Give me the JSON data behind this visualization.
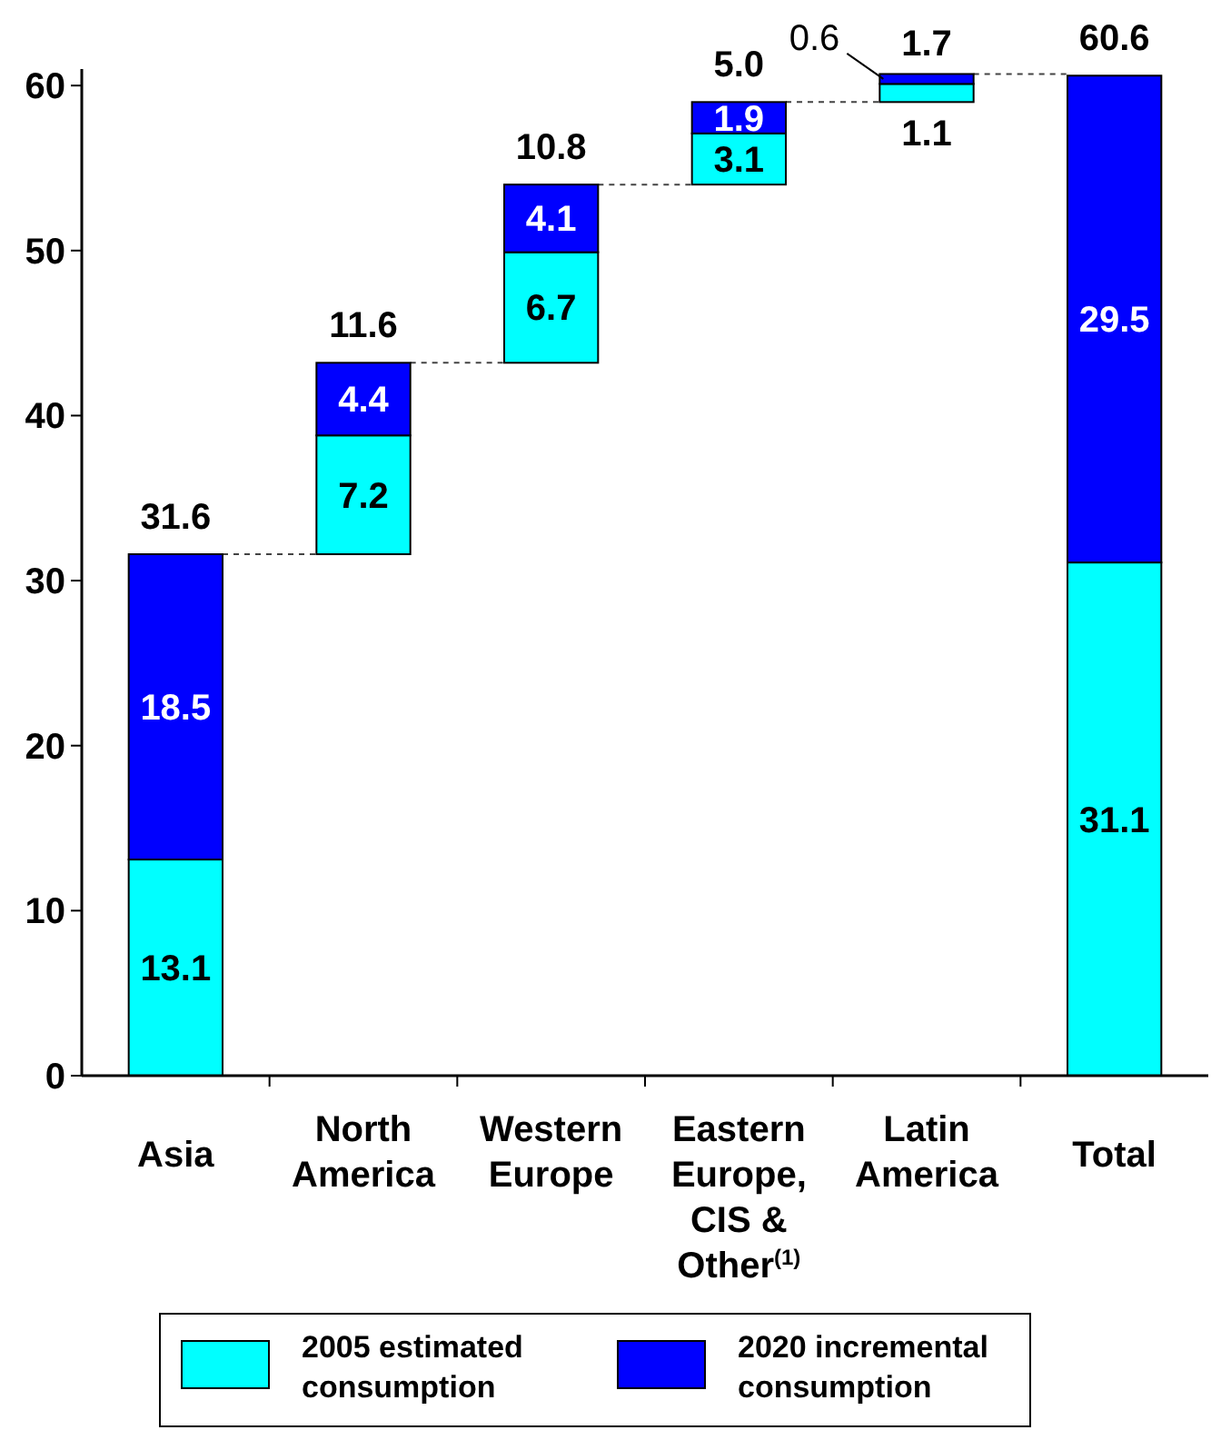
{
  "chart_data": {
    "type": "bar",
    "categories": [
      "Asia",
      "North America",
      "Western Europe",
      "Eastern Europe, CIS & Other$^{(1)}$",
      "Latin America",
      "Total"
    ],
    "series": [
      {
        "name": "2005 estimated consumption",
        "color": "#00ffff",
        "values": [
          13.1,
          7.2,
          6.7,
          3.1,
          1.1,
          31.1
        ],
        "base": [
          0,
          31.6,
          43.2,
          54.0,
          59.0,
          0
        ]
      },
      {
        "name": "2020 incremental consumption",
        "color": "#0000ff",
        "values": [
          18.5,
          4.4,
          4.1,
          1.9,
          0.6,
          29.5
        ],
        "base": [
          13.1,
          38.8,
          49.9,
          57.1,
          60.1,
          31.1
        ]
      }
    ],
    "totals": [
      "31.6",
      "11.6",
      "10.8",
      "5.0",
      "1.7",
      "60.6"
    ],
    "data_labels": true,
    "ylim": [
      0,
      61
    ],
    "yticks": [
      0,
      10,
      20,
      30,
      40,
      50,
      60
    ],
    "grid": false,
    "legend": "bottom"
  }
}
